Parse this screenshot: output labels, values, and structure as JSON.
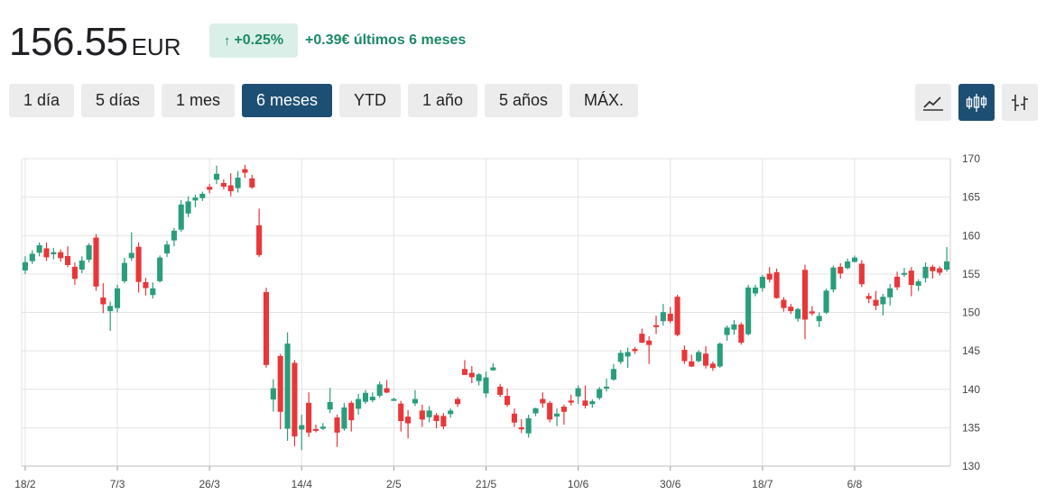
{
  "header": {
    "price": "156.55",
    "currency": "EUR",
    "change_pct": "+0.25%",
    "change_abs": "+0.39€ últimos 6 meses"
  },
  "ranges": [
    {
      "label": "1 día",
      "active": false
    },
    {
      "label": "5 días",
      "active": false
    },
    {
      "label": "1 mes",
      "active": false
    },
    {
      "label": "6 meses",
      "active": true
    },
    {
      "label": "YTD",
      "active": false
    },
    {
      "label": "1 año",
      "active": false
    },
    {
      "label": "5 años",
      "active": false
    },
    {
      "label": "MÁX.",
      "active": false
    }
  ],
  "view_buttons": [
    {
      "icon": "line-chart-icon",
      "active": false
    },
    {
      "icon": "candlestick-icon",
      "active": true
    },
    {
      "icon": "ohlc-bars-icon",
      "active": false
    }
  ],
  "colors": {
    "up": "#2a9d7c",
    "down": "#e8373a",
    "accent": "#1d4e74",
    "badge_bg": "#d9efe7",
    "badge_text": "#1c8a63"
  },
  "chart_data": {
    "type": "candlestick",
    "ylim": [
      130,
      170
    ],
    "y_ticks": [
      170,
      165,
      160,
      155,
      150,
      145,
      140,
      135,
      130
    ],
    "x_tick_labels": [
      "18/2",
      "7/3",
      "26/3",
      "14/4",
      "2/5",
      "21/5",
      "10/6",
      "30/6",
      "18/7",
      "6/8"
    ],
    "x_tick_index": [
      0,
      13,
      26,
      39,
      52,
      65,
      78,
      91,
      104,
      117
    ],
    "grid": true,
    "y_axis_position": "right",
    "ohlc": [
      [
        155.5,
        157.3,
        155.0,
        156.5
      ],
      [
        156.7,
        158.1,
        156.3,
        157.6
      ],
      [
        157.8,
        159.1,
        157.3,
        158.7
      ],
      [
        158.3,
        159.1,
        156.7,
        157.2
      ],
      [
        157.6,
        158.4,
        156.9,
        157.8
      ],
      [
        157.8,
        158.2,
        156.6,
        157.1
      ],
      [
        157.3,
        158.6,
        155.9,
        156.2
      ],
      [
        155.9,
        156.5,
        153.6,
        154.4
      ],
      [
        155.6,
        157.3,
        155.1,
        156.7
      ],
      [
        156.9,
        159.0,
        156.5,
        158.7
      ],
      [
        159.7,
        160.2,
        152.8,
        153.4
      ],
      [
        151.9,
        153.8,
        149.9,
        151.1
      ],
      [
        150.2,
        151.4,
        147.6,
        150.8
      ],
      [
        150.6,
        153.6,
        150.0,
        153.1
      ],
      [
        154.1,
        157.1,
        153.8,
        156.4
      ],
      [
        157.1,
        160.4,
        156.7,
        157.7
      ],
      [
        158.5,
        159.1,
        152.6,
        154.0
      ],
      [
        153.9,
        154.5,
        152.2,
        153.2
      ],
      [
        152.3,
        153.9,
        151.8,
        153.1
      ],
      [
        154.1,
        157.4,
        153.9,
        157.1
      ],
      [
        157.7,
        159.3,
        157.2,
        158.8
      ],
      [
        159.4,
        161.0,
        158.6,
        160.6
      ],
      [
        160.8,
        164.6,
        160.5,
        164.0
      ],
      [
        162.9,
        165.1,
        162.4,
        164.4
      ],
      [
        164.6,
        165.3,
        163.7,
        164.9
      ],
      [
        164.9,
        165.7,
        164.5,
        165.4
      ],
      [
        166.3,
        166.7,
        165.5,
        166.0
      ],
      [
        167.3,
        169.1,
        166.7,
        168.0
      ],
      [
        166.8,
        167.3,
        166.0,
        166.4
      ],
      [
        166.5,
        168.1,
        165.1,
        165.8
      ],
      [
        166.2,
        168.4,
        165.6,
        167.5
      ],
      [
        168.6,
        169.2,
        167.5,
        168.2
      ],
      [
        167.4,
        167.9,
        166.1,
        166.3
      ],
      [
        161.3,
        163.5,
        157.2,
        157.5
      ],
      [
        152.6,
        153.2,
        142.8,
        143.2
      ],
      [
        138.7,
        141.3,
        137.1,
        140.1
      ],
      [
        144.3,
        144.6,
        134.8,
        137.1
      ],
      [
        134.9,
        147.4,
        133.3,
        145.9
      ],
      [
        143.4,
        143.8,
        132.6,
        133.9
      ],
      [
        134.8,
        136.7,
        132.1,
        135.3
      ],
      [
        138.2,
        139.6,
        133.8,
        134.4
      ],
      [
        134.8,
        135.4,
        134.4,
        134.7
      ],
      [
        134.9,
        135.6,
        134.7,
        135.1
      ],
      [
        137.4,
        140.2,
        136.9,
        138.3
      ],
      [
        136.3,
        136.7,
        132.5,
        134.4
      ],
      [
        134.9,
        138.2,
        134.6,
        137.6
      ],
      [
        138.2,
        138.5,
        134.5,
        136.0
      ],
      [
        137.5,
        139.4,
        136.7,
        138.7
      ],
      [
        138.4,
        139.9,
        138.1,
        139.5
      ],
      [
        138.6,
        139.6,
        138.3,
        139.0
      ],
      [
        139.2,
        141.0,
        138.9,
        140.6
      ],
      [
        140.1,
        141.2,
        139.5,
        139.6
      ],
      [
        138.6,
        138.9,
        138.5,
        138.7
      ],
      [
        138.1,
        138.5,
        134.5,
        135.9
      ],
      [
        136.4,
        137.3,
        133.6,
        135.6
      ],
      [
        138.2,
        139.9,
        137.8,
        138.7
      ],
      [
        137.2,
        138.0,
        135.1,
        136.1
      ],
      [
        136.4,
        137.8,
        135.7,
        137.2
      ],
      [
        136.6,
        136.9,
        134.9,
        135.9
      ],
      [
        136.5,
        136.9,
        134.8,
        135.2
      ],
      [
        136.8,
        137.5,
        136.3,
        137.2
      ],
      [
        138.7,
        139.0,
        137.7,
        138.1
      ],
      [
        142.6,
        143.8,
        141.9,
        141.9
      ],
      [
        142.1,
        143.0,
        140.8,
        141.6
      ],
      [
        141.1,
        142.1,
        140.5,
        141.9
      ],
      [
        139.5,
        142.3,
        138.9,
        141.5
      ],
      [
        142.5,
        143.4,
        142.4,
        142.8
      ],
      [
        140.3,
        140.7,
        139.0,
        139.3
      ],
      [
        139.1,
        140.1,
        137.7,
        138.0
      ],
      [
        136.8,
        137.5,
        135.1,
        135.7
      ],
      [
        135.0,
        136.1,
        134.3,
        134.9
      ],
      [
        134.3,
        136.7,
        133.7,
        136.2
      ],
      [
        136.9,
        137.6,
        136.5,
        137.5
      ],
      [
        138.7,
        139.6,
        137.6,
        138.2
      ],
      [
        138.2,
        138.5,
        135.7,
        136.1
      ],
      [
        136.5,
        137.5,
        135.2,
        136.8
      ],
      [
        137.7,
        138.0,
        135.4,
        137.1
      ],
      [
        138.5,
        139.3,
        137.9,
        138.3
      ],
      [
        139.1,
        140.5,
        138.1,
        140.1
      ],
      [
        138.5,
        140.5,
        137.5,
        137.9
      ],
      [
        138.1,
        138.7,
        137.6,
        138.4
      ],
      [
        138.9,
        140.3,
        138.6,
        140.0
      ],
      [
        140.2,
        141.4,
        139.7,
        140.3
      ],
      [
        141.3,
        143.3,
        141.1,
        142.6
      ],
      [
        143.6,
        145.1,
        143.3,
        144.7
      ],
      [
        144.3,
        145.4,
        142.8,
        144.8
      ],
      [
        145.2,
        145.5,
        144.6,
        145.0
      ],
      [
        147.2,
        147.9,
        146.0,
        146.1
      ],
      [
        146.3,
        146.9,
        143.3,
        145.8
      ],
      [
        148.3,
        149.6,
        147.2,
        148.2
      ],
      [
        148.9,
        151.1,
        148.3,
        150.0
      ],
      [
        149.8,
        150.7,
        148.6,
        148.9
      ],
      [
        152.0,
        152.3,
        146.9,
        147.1
      ],
      [
        145.1,
        145.7,
        143.3,
        143.7
      ],
      [
        143.6,
        144.5,
        142.9,
        143.0
      ],
      [
        143.7,
        145.1,
        143.5,
        144.8
      ],
      [
        144.6,
        145.6,
        142.7,
        143.1
      ],
      [
        143.3,
        143.6,
        142.4,
        142.8
      ],
      [
        143.0,
        146.1,
        142.8,
        145.9
      ],
      [
        147.1,
        148.3,
        146.3,
        148.0
      ],
      [
        147.8,
        149.0,
        147.1,
        148.4
      ],
      [
        148.4,
        148.7,
        145.8,
        146.1
      ],
      [
        147.2,
        153.6,
        147.0,
        153.2
      ],
      [
        152.5,
        153.6,
        152.1,
        153.2
      ],
      [
        153.2,
        154.9,
        152.7,
        154.6
      ],
      [
        155.0,
        155.9,
        153.9,
        154.3
      ],
      [
        155.2,
        155.7,
        151.8,
        151.9
      ],
      [
        151.6,
        152.0,
        150.1,
        150.6
      ],
      [
        150.7,
        151.1,
        149.8,
        150.2
      ],
      [
        149.2,
        150.6,
        148.8,
        150.4
      ],
      [
        155.5,
        156.2,
        146.5,
        149.1
      ],
      [
        150.1,
        150.8,
        149.6,
        149.9
      ],
      [
        148.9,
        150.0,
        148.1,
        149.5
      ],
      [
        150.0,
        153.1,
        149.8,
        152.8
      ],
      [
        153.0,
        156.1,
        152.6,
        155.8
      ],
      [
        155.9,
        156.4,
        154.4,
        155.1
      ],
      [
        155.8,
        157.0,
        155.6,
        156.6
      ],
      [
        156.6,
        157.4,
        156.5,
        157.1
      ],
      [
        156.3,
        156.8,
        153.3,
        153.7
      ],
      [
        152.1,
        152.5,
        151.2,
        151.8
      ],
      [
        151.6,
        152.8,
        150.3,
        150.9
      ],
      [
        151.1,
        152.4,
        149.6,
        152.0
      ],
      [
        152.0,
        153.7,
        150.9,
        153.1
      ],
      [
        154.6,
        155.3,
        152.9,
        153.3
      ],
      [
        155.1,
        155.8,
        154.6,
        155.1
      ],
      [
        155.4,
        155.9,
        152.1,
        153.6
      ],
      [
        153.5,
        154.3,
        152.8,
        154.0
      ],
      [
        154.5,
        156.5,
        153.9,
        155.9
      ],
      [
        155.9,
        156.2,
        154.4,
        155.4
      ],
      [
        155.7,
        156.0,
        154.8,
        155.2
      ],
      [
        155.6,
        158.5,
        155.3,
        156.6
      ]
    ]
  }
}
